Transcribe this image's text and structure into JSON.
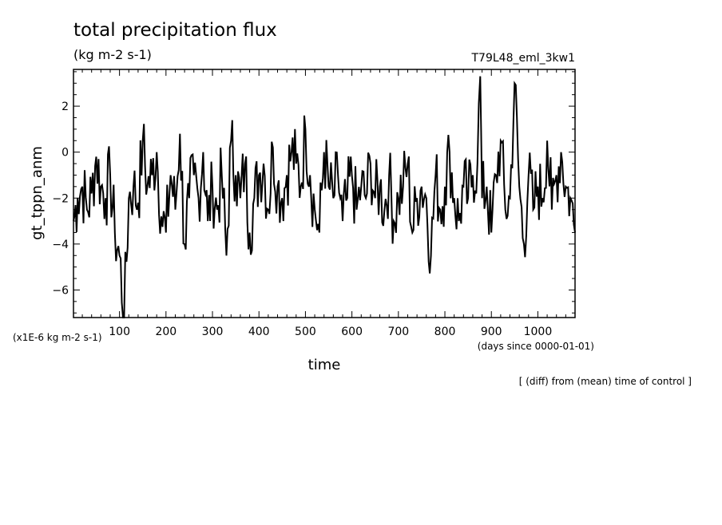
{
  "chart_data": {
    "type": "line",
    "title": "total precipitation flux",
    "subtitle": "(kg m-2 s-1)",
    "run_label": "T79L48_eml_3kw1",
    "ylabel": "gt_tppn_anm",
    "xlabel": "time",
    "y_unit_label": "(x1E-6 kg m-2 s-1)",
    "x_unit_label": "(days since 0000-01-01)",
    "note": "[ (diff) from (mean) time of control ]",
    "xlim": [
      1,
      1080
    ],
    "ylim": [
      -7.2,
      3.6
    ],
    "x_ticks": [
      100,
      200,
      300,
      400,
      500,
      600,
      700,
      800,
      900,
      1000
    ],
    "x_tick_labels": [
      "100",
      "200",
      "300",
      "400",
      "500",
      "600",
      "700",
      "800",
      "900",
      "1000"
    ],
    "y_ticks": [
      2,
      0,
      -2,
      -4,
      -6
    ],
    "y_tick_labels": [
      "2",
      "0",
      "−2",
      "−4",
      "−6"
    ],
    "grid": false,
    "series": [
      {
        "x": [
          1,
          10,
          20,
          30,
          40,
          50,
          60,
          70,
          80,
          90,
          100,
          110,
          120,
          130,
          140,
          150,
          160,
          170,
          180,
          190,
          200,
          210,
          220,
          230,
          240,
          250,
          260,
          270,
          280,
          290,
          300,
          310,
          320,
          330,
          340,
          350,
          360,
          370,
          380,
          390,
          400,
          410,
          420,
          430,
          440,
          450,
          460,
          470,
          480,
          490,
          500,
          510,
          520,
          530,
          540,
          550,
          560,
          570,
          580,
          590,
          600,
          610,
          620,
          630,
          640,
          650,
          660,
          670,
          680,
          690,
          700,
          710,
          720,
          730,
          740,
          750,
          760,
          770,
          780,
          790,
          800,
          810,
          820,
          830,
          840,
          850,
          860,
          870,
          876,
          880,
          890,
          900,
          910,
          920,
          930,
          940,
          950,
          960,
          970,
          980,
          990,
          1000,
          1010,
          1020,
          1030,
          1040,
          1050,
          1060,
          1070,
          1080
        ],
        "values": [
          -3.0,
          -2.0,
          -1.5,
          -2.5,
          -1.8,
          -0.2,
          -1.5,
          -2.0,
          -1.0,
          -3.5,
          -4.5,
          -7.2,
          -2.0,
          -1.5,
          -2.2,
          0.5,
          -1.5,
          -1.0,
          0.0,
          -2.8,
          -3.5,
          -1.0,
          -2.5,
          0.8,
          -4.0,
          -2.0,
          -1.0,
          -2.0,
          0.0,
          -3.0,
          -1.5,
          -2.5,
          -1.0,
          -4.5,
          0.5,
          -1.0,
          -2.0,
          -0.5,
          -3.5,
          -2.0,
          -1.0,
          -0.5,
          -2.5,
          0.2,
          -1.5,
          -2.0,
          -1.0,
          0.0,
          -0.5,
          -1.5,
          1.0,
          -1.0,
          -2.5,
          -3.5,
          0.0,
          -1.5,
          -2.0,
          -1.0,
          -3.0,
          -2.0,
          -1.0,
          -2.5,
          -1.5,
          -2.0,
          -0.5,
          -2.0,
          -1.5,
          -2.5,
          -1.0,
          -3.0,
          -2.0,
          -1.5,
          -0.5,
          -3.5,
          -2.0,
          -1.5,
          -2.0,
          -4.5,
          -1.0,
          -2.5,
          -1.5,
          0.0,
          -2.0,
          -3.0,
          -1.5,
          -2.0,
          -1.0,
          -0.5,
          3.3,
          -2.0,
          -1.5,
          -3.5,
          -1.0,
          0.5,
          -2.5,
          -2.0,
          3.0,
          -1.5,
          -4.0,
          -1.0,
          -2.5,
          -1.5,
          -2.0,
          0.5,
          -2.5,
          -1.0,
          0.0,
          -1.5,
          -2.0,
          -3.5
        ]
      }
    ]
  }
}
